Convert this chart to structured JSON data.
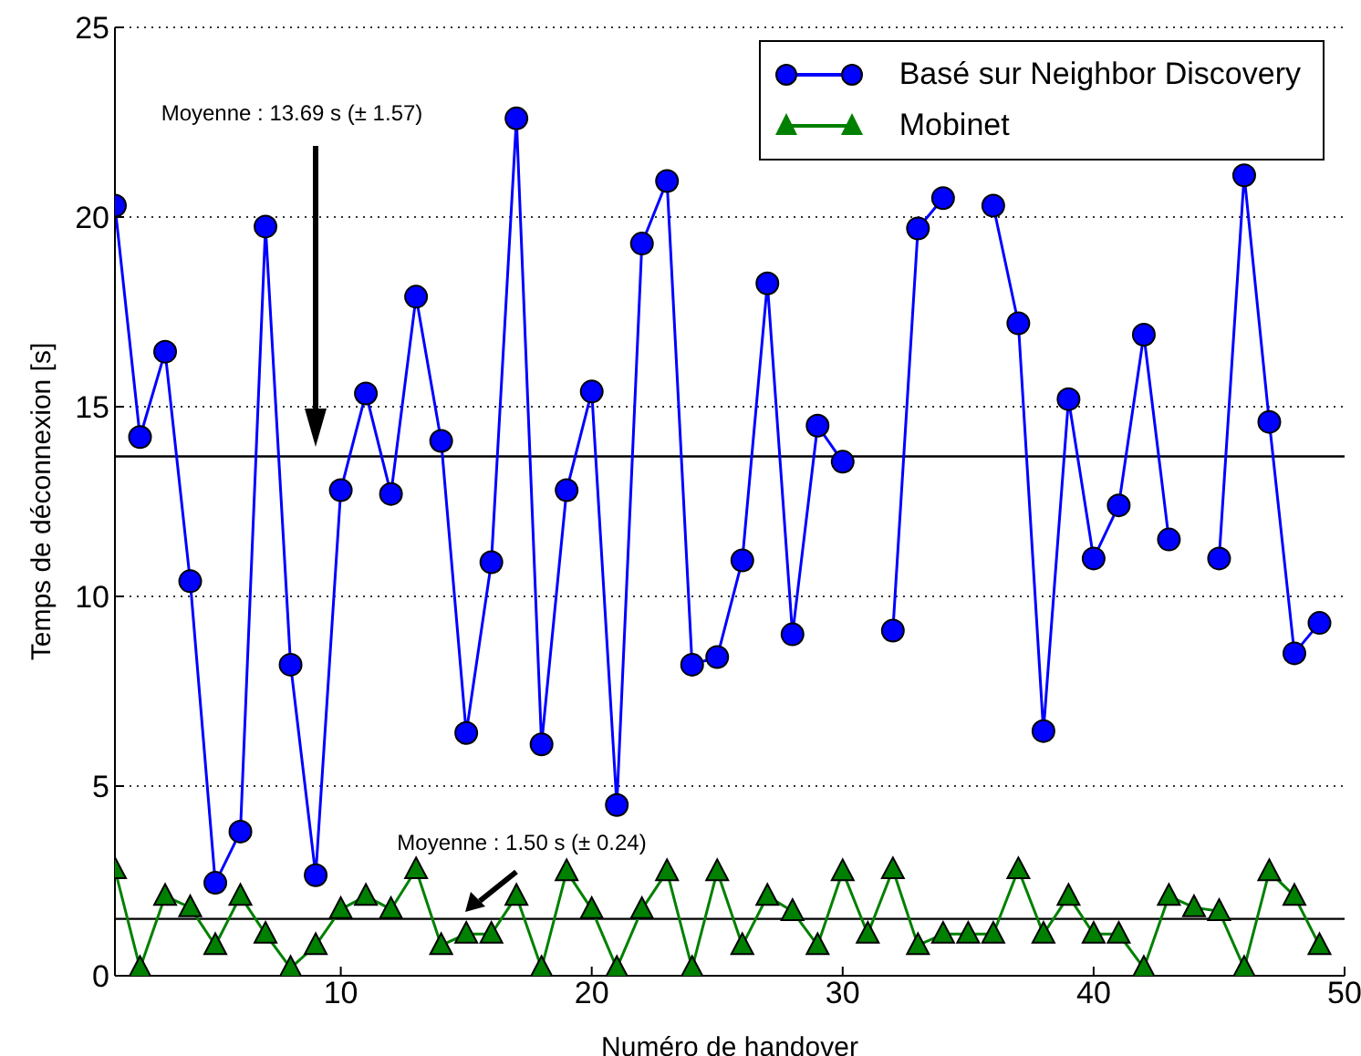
{
  "chart_data": {
    "type": "line",
    "xlabel": "Numéro de handover",
    "ylabel": "Temps de déconnexion [s]",
    "x": [
      1,
      2,
      3,
      4,
      5,
      6,
      7,
      8,
      9,
      10,
      11,
      12,
      13,
      14,
      15,
      16,
      17,
      18,
      19,
      20,
      21,
      22,
      23,
      24,
      25,
      26,
      27,
      28,
      29,
      30,
      31,
      32,
      33,
      34,
      35,
      36,
      37,
      38,
      39,
      40,
      41,
      42,
      43,
      44,
      45,
      46,
      47,
      48,
      49
    ],
    "xlim": [
      1,
      50
    ],
    "xticks": [
      10,
      20,
      30,
      40,
      50
    ],
    "ylim": [
      0,
      25
    ],
    "yticks": [
      0,
      5,
      10,
      15,
      20,
      25
    ],
    "grid": "y",
    "legend": "top right",
    "line_style": "solid",
    "series": [
      {
        "name": "Basé sur Neighbor Discovery",
        "color": "#0000ff",
        "marker": "circle",
        "values": [
          20.3,
          14.2,
          16.45,
          10.4,
          2.45,
          3.8,
          19.75,
          8.2,
          2.65,
          12.8,
          15.35,
          12.7,
          17.9,
          14.1,
          6.4,
          10.9,
          22.6,
          6.1,
          12.8,
          15.4,
          4.5,
          19.3,
          20.95,
          8.2,
          8.4,
          10.95,
          18.25,
          9.0,
          14.5,
          13.55,
          null,
          9.1,
          19.7,
          20.5,
          null,
          20.3,
          17.2,
          6.45,
          15.2,
          11.0,
          12.4,
          16.9,
          11.5,
          null,
          11.0,
          21.1,
          14.6,
          8.5,
          9.3
        ]
      },
      {
        "name": "Mobinet",
        "color": "#008000",
        "marker": "triangle",
        "values": [
          2.8,
          0.2,
          2.1,
          1.8,
          0.8,
          2.1,
          1.1,
          0.2,
          0.8,
          1.75,
          2.1,
          1.75,
          2.8,
          0.8,
          1.1,
          1.1,
          2.1,
          0.2,
          2.75,
          1.75,
          0.2,
          1.75,
          2.75,
          0.2,
          2.75,
          0.8,
          2.1,
          1.7,
          0.8,
          2.75,
          1.1,
          2.8,
          0.8,
          1.1,
          1.1,
          1.1,
          2.8,
          1.1,
          2.1,
          1.1,
          1.1,
          0.2,
          2.1,
          1.8,
          1.7,
          0.2,
          2.75,
          2.1,
          0.8
        ]
      }
    ],
    "ref_lines": [
      {
        "axis": "y",
        "value": 13.69,
        "color": "#000000"
      },
      {
        "axis": "y",
        "value": 1.5,
        "color": "#000000"
      }
    ],
    "annotations": [
      "Moyenne : 13.69 s (± 1.57)",
      "Moyenne : 1.50 s (± 0.24)"
    ]
  }
}
